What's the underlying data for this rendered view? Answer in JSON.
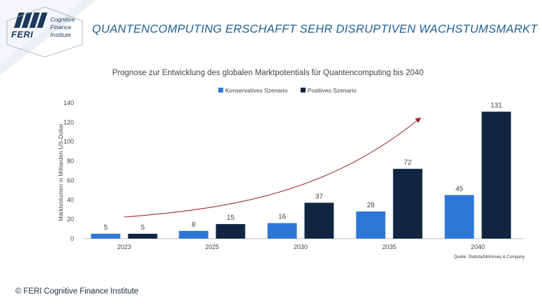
{
  "header": {
    "title": "QUANTENCOMPUTING ERSCHAFFT SEHR DISRUPTIVEN WACHSTUMSMARKT"
  },
  "logo": {
    "name": "FERI",
    "line1": "Cognitive",
    "line2": "Finance",
    "line3": "Institute"
  },
  "footer": {
    "copyright": "© FERI Cognitive Finance Institute",
    "source": "Quelle: Statista/McKinsey & Company"
  },
  "colors": {
    "konservativ": "#2e77d8",
    "positiv": "#10253f",
    "arrow": "#a0282a",
    "headline": "#1f5f92"
  },
  "chart_data": {
    "type": "bar",
    "title": "Prognose zur Entwicklung des globalen Marktpotentials für Quantencomputing bis 2040",
    "ylabel": "Marktvolumen in Milliarden US-Dollar",
    "xlabel": "",
    "categories": [
      "2023",
      "2025",
      "2030",
      "2035",
      "2040"
    ],
    "series": [
      {
        "name": "Konservatives Szenario",
        "values": [
          5,
          8,
          16,
          28,
          45
        ]
      },
      {
        "name": "Positives Szenario",
        "values": [
          5,
          15,
          37,
          72,
          131
        ]
      }
    ],
    "ylim": [
      0,
      140
    ],
    "yticks": [
      0,
      20,
      40,
      60,
      80,
      100,
      120,
      140
    ],
    "legend": "top-center",
    "grid": false
  }
}
